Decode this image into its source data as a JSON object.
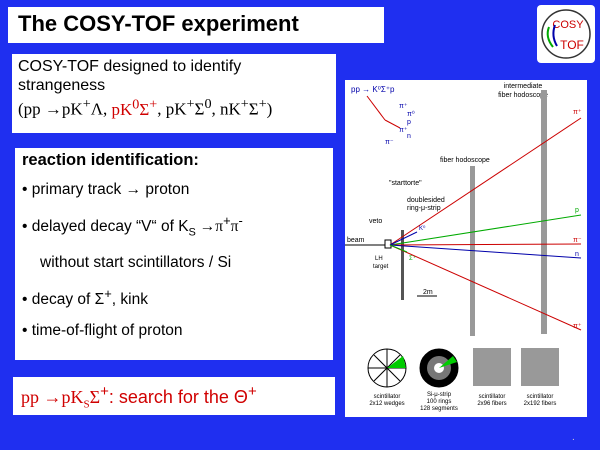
{
  "title": "The COSY-TOF experiment",
  "logo": {
    "top": "COSY",
    "bottom": "TOF"
  },
  "strangeness": {
    "line1": "COSY-TOF designed to identify",
    "line2": "strangeness",
    "reactions_open": "(pp →pK",
    "r1_tail": "Λ, ",
    "r2": "pK",
    "r2_tail": "Σ",
    "r3": "pK",
    "r3_tail": "Σ",
    "r4": "nK",
    "r4_tail": "Σ",
    "close": ")"
  },
  "reaction": {
    "header": "reaction identification:",
    "items": [
      "• primary track → proton",
      "• delayed decay “V“ of K",
      "without start scintillators / Si",
      "• decay of Σ",
      "• time-of-flight of proton"
    ],
    "ks_tail": " →π",
    "kink": ", kink"
  },
  "search": {
    "reaction": "pp →pK",
    "text": ": search for the Θ"
  },
  "figure": {
    "reaction_label": "pp → K⁰Σ⁺p",
    "intermediate": [
      "intermediate",
      "fiber hodoscope"
    ],
    "fiber_hodoscope": "fiber hodoscope",
    "starttorte": "\"starttorte\"",
    "doublesided": [
      "doublesided",
      "ring-μ-strip"
    ],
    "beam": "beam",
    "veto": "veto",
    "lh2": "LH",
    "target": "target",
    "scale": "2m",
    "track_labels": [
      "π⁺",
      "p",
      "π⁻",
      "n",
      "π⁺",
      "K⁰",
      "Σ⁺"
    ],
    "decay": [
      "π⁺",
      "π⁰",
      "p",
      "π⁺",
      "n",
      "π⁻"
    ],
    "detectors": [
      [
        "scintillator",
        "2x12 wedges"
      ],
      [
        "Si-μ-strip",
        "100 rings",
        "128 segments"
      ],
      [
        "scintillator",
        "2x96 fibers"
      ],
      [
        "scintillator",
        "2x192 fibers"
      ]
    ]
  },
  "footer": "."
}
